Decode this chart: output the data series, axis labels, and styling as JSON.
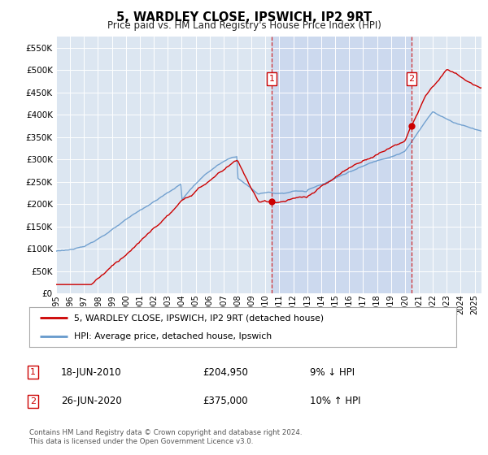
{
  "title": "5, WARDLEY CLOSE, IPSWICH, IP2 9RT",
  "subtitle": "Price paid vs. HM Land Registry's House Price Index (HPI)",
  "ytick_values": [
    0,
    50000,
    100000,
    150000,
    200000,
    250000,
    300000,
    350000,
    400000,
    450000,
    500000,
    550000
  ],
  "ylim": [
    0,
    575000
  ],
  "xlim_start": 1995.0,
  "xlim_end": 2025.5,
  "plot_bg_color": "#dce6f1",
  "highlight_bg_color": "#ccd9ee",
  "grid_color": "#ffffff",
  "sale1_x": 2010.46,
  "sale1_y": 204950,
  "sale1_label": "1",
  "sale1_date": "18-JUN-2010",
  "sale1_price": "£204,950",
  "sale1_hpi": "9% ↓ HPI",
  "sale2_x": 2020.48,
  "sale2_y": 375000,
  "sale2_label": "2",
  "sale2_date": "26-JUN-2020",
  "sale2_price": "£375,000",
  "sale2_hpi": "10% ↑ HPI",
  "legend_label_red": "5, WARDLEY CLOSE, IPSWICH, IP2 9RT (detached house)",
  "legend_label_blue": "HPI: Average price, detached house, Ipswich",
  "footer": "Contains HM Land Registry data © Crown copyright and database right 2024.\nThis data is licensed under the Open Government Licence v3.0.",
  "line_red_color": "#cc0000",
  "line_blue_color": "#6699cc",
  "xtick_years": [
    1995,
    1996,
    1997,
    1998,
    1999,
    2000,
    2001,
    2002,
    2003,
    2004,
    2005,
    2006,
    2007,
    2008,
    2009,
    2010,
    2011,
    2012,
    2013,
    2014,
    2015,
    2016,
    2017,
    2018,
    2019,
    2020,
    2021,
    2022,
    2023,
    2024,
    2025
  ]
}
